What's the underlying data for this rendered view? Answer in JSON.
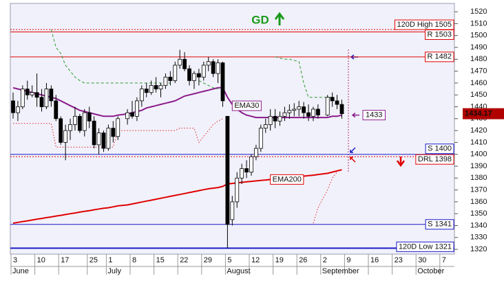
{
  "chart_data": {
    "type": "candlestick",
    "annotation": "GD",
    "ylim": [
      1316,
      1527
    ],
    "yticks": [
      1320,
      1330,
      1340,
      1350,
      1360,
      1370,
      1380,
      1390,
      1400,
      1410,
      1420,
      1430,
      1440,
      1450,
      1460,
      1470,
      1480,
      1490,
      1500,
      1510,
      1520
    ],
    "xticks": [
      {
        "value": "June 3",
        "label": "3"
      },
      {
        "value": "June 10",
        "label": "10"
      },
      {
        "value": "June 17",
        "label": "17"
      },
      {
        "value": "June 25",
        "label": "25"
      },
      {
        "value": "July 1",
        "label": "1"
      },
      {
        "value": "July 8",
        "label": "8"
      },
      {
        "value": "July 15",
        "label": "15"
      },
      {
        "value": "July 22",
        "label": "22"
      },
      {
        "value": "July 29",
        "label": "29"
      },
      {
        "value": "August 5",
        "label": "5"
      },
      {
        "value": "August 12",
        "label": "12"
      },
      {
        "value": "August 19",
        "label": "19"
      },
      {
        "value": "August 26",
        "label": "26"
      },
      {
        "value": "September 2",
        "label": "2"
      },
      {
        "value": "September 9",
        "label": "9"
      },
      {
        "value": "September 16",
        "label": "16"
      },
      {
        "value": "September 23",
        "label": "23"
      },
      {
        "value": "September 30",
        "label": "30"
      },
      {
        "value": "October 7",
        "label": "7"
      }
    ],
    "month_labels": [
      {
        "value": "June 3",
        "label": "June"
      },
      {
        "value": "July 1",
        "label": "July"
      },
      {
        "value": "August 5",
        "label": "August"
      },
      {
        "value": "September 2",
        "label": "September"
      },
      {
        "value": "September 30",
        "label": "October"
      }
    ],
    "x": [
      "June 3",
      "June 4",
      "June 5",
      "June 6",
      "June 7",
      "June 10",
      "June 11",
      "June 12",
      "June 13",
      "June 14",
      "June 17",
      "June 18",
      "June 19",
      "June 20",
      "June 21",
      "June 24",
      "June 25",
      "June 26",
      "June 27",
      "June 28",
      "July 1",
      "July 2",
      "July 3",
      "July 5",
      "July 8",
      "July 9",
      "July 10",
      "July 11",
      "July 12",
      "July 15",
      "July 16",
      "July 17",
      "July 18",
      "July 19",
      "July 22",
      "July 23",
      "July 24",
      "July 25",
      "July 26",
      "July 29",
      "July 30",
      "July 31",
      "August 1",
      "August 2",
      "August 5",
      "August 6",
      "August 7",
      "August 8",
      "August 9",
      "August 12",
      "August 13",
      "August 14",
      "August 15",
      "August 16",
      "August 19",
      "August 20",
      "August 21",
      "August 22",
      "August 23",
      "August 26",
      "August 27",
      "August 28",
      "August 29",
      "August 30",
      "September 3",
      "September 4",
      "September 5",
      "September 6"
    ],
    "open": [
      1445,
      1435,
      1440,
      1455,
      1450,
      1452,
      1448,
      1440,
      1455,
      1445,
      1430,
      1410,
      1420,
      1425,
      1432,
      1420,
      1435,
      1428,
      1408,
      1418,
      1405,
      1422,
      1415,
      1430,
      1435,
      1432,
      1445,
      1455,
      1452,
      1458,
      1455,
      1458,
      1465,
      1462,
      1475,
      1480,
      1472,
      1462,
      1468,
      1465,
      1475,
      1478,
      1468,
      1477,
      1432,
      1345,
      1360,
      1380,
      1388,
      1385,
      1398,
      1405,
      1422,
      1425,
      1432,
      1428,
      1432,
      1435,
      1437,
      1438,
      1440,
      1435,
      1432,
      1438,
      1433,
      1448,
      1445,
      1442
    ],
    "high": [
      1452,
      1445,
      1458,
      1462,
      1458,
      1468,
      1455,
      1460,
      1458,
      1450,
      1432,
      1425,
      1430,
      1440,
      1434,
      1438,
      1440,
      1432,
      1422,
      1420,
      1425,
      1428,
      1432,
      1438,
      1445,
      1448,
      1458,
      1460,
      1462,
      1465,
      1460,
      1468,
      1470,
      1478,
      1488,
      1486,
      1475,
      1470,
      1472,
      1478,
      1482,
      1480,
      1480,
      1478,
      1432,
      1365,
      1385,
      1392,
      1395,
      1400,
      1408,
      1425,
      1430,
      1438,
      1438,
      1436,
      1440,
      1442,
      1443,
      1445,
      1444,
      1442,
      1440,
      1442,
      1450,
      1452,
      1450,
      1446
    ],
    "low": [
      1430,
      1428,
      1438,
      1446,
      1448,
      1440,
      1436,
      1438,
      1440,
      1428,
      1408,
      1395,
      1412,
      1420,
      1418,
      1415,
      1422,
      1405,
      1400,
      1402,
      1403,
      1410,
      1412,
      1425,
      1430,
      1428,
      1440,
      1448,
      1450,
      1452,
      1448,
      1455,
      1458,
      1460,
      1472,
      1470,
      1458,
      1455,
      1458,
      1462,
      1470,
      1465,
      1460,
      1440,
      1321,
      1340,
      1355,
      1375,
      1380,
      1382,
      1395,
      1402,
      1418,
      1420,
      1422,
      1424,
      1428,
      1430,
      1432,
      1432,
      1430,
      1428,
      1428,
      1430,
      1432,
      1440,
      1438,
      1430
    ],
    "close": [
      1435,
      1440,
      1455,
      1450,
      1452,
      1448,
      1440,
      1455,
      1445,
      1430,
      1410,
      1420,
      1425,
      1432,
      1420,
      1435,
      1428,
      1408,
      1418,
      1405,
      1422,
      1415,
      1430,
      1435,
      1432,
      1445,
      1455,
      1452,
      1458,
      1455,
      1458,
      1465,
      1462,
      1475,
      1480,
      1472,
      1462,
      1468,
      1465,
      1475,
      1478,
      1468,
      1477,
      1445,
      1341,
      1360,
      1380,
      1388,
      1385,
      1398,
      1405,
      1422,
      1425,
      1432,
      1428,
      1432,
      1435,
      1437,
      1438,
      1440,
      1435,
      1432,
      1438,
      1433,
      1448,
      1445,
      1442,
      1434.17
    ],
    "up_color": "#ffffff",
    "down_color": "#000000",
    "series": [
      {
        "name": "EMA30",
        "color": "#8a1a8a",
        "values": [
          1456,
          1455,
          1454,
          1453,
          1452,
          1451,
          1450,
          1449,
          1448,
          1447,
          1445,
          1443,
          1441,
          1439,
          1437,
          1436,
          1435,
          1434,
          1433,
          1432,
          1432,
          1432,
          1433,
          1434,
          1435,
          1436,
          1437,
          1439,
          1440,
          1441,
          1442,
          1443,
          1444,
          1445,
          1447,
          1449,
          1450,
          1451,
          1452,
          1453,
          1454,
          1455,
          1456,
          1456,
          1448,
          1442,
          1438,
          1435,
          1433,
          1432,
          1431,
          1431,
          1431,
          1431,
          1431,
          1431,
          1431,
          1431,
          1431,
          1431,
          1431,
          1431,
          1431,
          1431,
          1431,
          1432,
          1432,
          1433
        ]
      },
      {
        "name": "EMA200",
        "color": "#e00000",
        "values": [
          1342,
          1342.7,
          1343.4,
          1344,
          1344.7,
          1345.4,
          1346,
          1346.7,
          1347.3,
          1348,
          1348.6,
          1349.3,
          1350,
          1350.6,
          1351.3,
          1352,
          1352.6,
          1353.3,
          1354,
          1354.6,
          1355,
          1355.8,
          1356.6,
          1357.4,
          1358.2,
          1359,
          1359.8,
          1360.6,
          1361.4,
          1362.2,
          1363,
          1363.8,
          1364.6,
          1365.4,
          1366.2,
          1367,
          1367.8,
          1368.6,
          1369.4,
          1370.2,
          1371,
          1371.5,
          1372,
          1373,
          1375,
          1375.5,
          1376,
          1376.4,
          1376.8,
          1377.2,
          1377.6,
          1378,
          1378.4,
          1378.8,
          1379.2,
          1379.6,
          1380,
          1380.4,
          1380.8,
          1381.2,
          1381.6,
          1382,
          1382.4,
          1383,
          1384,
          1385,
          1386,
          1387
        ]
      },
      {
        "color": "#2a9a2a",
        "dash": "dashed",
        "values": [
          null,
          null,
          null,
          null,
          null,
          null,
          null,
          null,
          1505,
          1490,
          1485,
          1475,
          1470,
          1465,
          1462,
          1460,
          1460,
          1460,
          1460,
          1460,
          1460,
          1460,
          1460,
          1460,
          1460,
          1460,
          1460,
          1460,
          1460,
          1460,
          1460,
          1460,
          1460,
          null,
          null,
          null,
          null,
          null,
          1462,
          1460,
          1458,
          1456,
          1455,
          null,
          null,
          null,
          null,
          null,
          null,
          null,
          null,
          null,
          null,
          null,
          1482,
          1481,
          1480,
          1480,
          1479,
          1478,
          1460,
          1448,
          1448,
          1448,
          1448,
          1448,
          null,
          null
        ]
      },
      {
        "color": "#e02020",
        "dash": "dotted",
        "values": [
          1426,
          1426,
          1426,
          1426,
          1426,
          1426,
          1426,
          1426,
          1426,
          1406,
          1406,
          1406,
          1406,
          1406,
          1406,
          1406,
          1406,
          1406,
          1406,
          1406,
          1406,
          1406,
          1420,
          1420,
          1420,
          1420,
          1420,
          1420,
          1420,
          1420,
          1420,
          1420,
          1420,
          1420,
          1422,
          1422,
          1422,
          1422,
          1410,
          1415,
          1420,
          1425,
          1428,
          1430,
          null,
          null,
          null,
          null,
          null,
          null,
          null,
          null,
          null,
          null,
          null,
          null,
          null,
          null,
          null,
          null,
          null,
          null,
          1342,
          1355,
          1370,
          1380,
          1385,
          null
        ]
      }
    ],
    "levels": [
      {
        "label": "120D High 1505",
        "value": 1505,
        "color": "#e00000",
        "style": "dotted"
      },
      {
        "label": "R 1503",
        "value": 1503,
        "color": "#e00000",
        "style": "solid"
      },
      {
        "label": "R 1482",
        "value": 1482,
        "color": "#e00000",
        "style": "solid"
      },
      {
        "label": "S 1400",
        "value": 1400,
        "color": "#1a1ac8",
        "style": "solid"
      },
      {
        "label": "DRL 1398",
        "value": 1398,
        "color": "#e00000",
        "style": "dotted"
      },
      {
        "label": "S 1341",
        "value": 1341,
        "color": "#1a1ac8",
        "style": "solid"
      },
      {
        "label": "120D Low 1321",
        "value": 1321,
        "color": "#1a1ac8",
        "style": "double"
      }
    ]
  }
}
